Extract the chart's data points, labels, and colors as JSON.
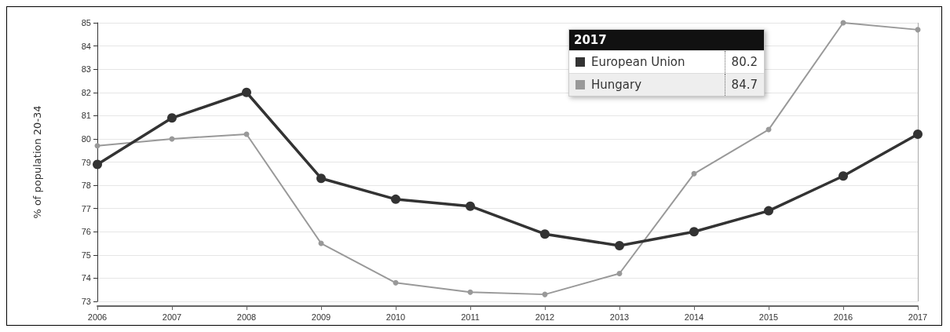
{
  "chart_data": {
    "type": "line",
    "ylabel": "% of population 20-34",
    "categories": [
      "2006",
      "2007",
      "2008",
      "2009",
      "2010",
      "2011",
      "2012",
      "2013",
      "2014",
      "2015",
      "2016",
      "2017"
    ],
    "series": [
      {
        "name": "European Union",
        "color": "#333333",
        "values": [
          78.9,
          80.9,
          82.0,
          78.3,
          77.4,
          77.1,
          75.9,
          75.4,
          76.0,
          76.9,
          78.4,
          80.2
        ]
      },
      {
        "name": "Hungary",
        "color": "#999999",
        "values": [
          79.7,
          80.0,
          80.2,
          75.5,
          73.8,
          73.4,
          73.3,
          74.2,
          78.5,
          80.4,
          85.0,
          84.7
        ]
      }
    ],
    "ylim": [
      73,
      85
    ],
    "yticks": [
      73,
      74,
      75,
      76,
      77,
      78,
      79,
      80,
      81,
      82,
      83,
      84,
      85
    ],
    "grid": "y",
    "marker": "circle",
    "legend": "top right",
    "ref_lines": [
      {
        "axis": "x",
        "value": "2017",
        "color": "#aaaaaa"
      }
    ],
    "annotations": [
      "2017",
      "80.2",
      "84.7"
    ]
  }
}
